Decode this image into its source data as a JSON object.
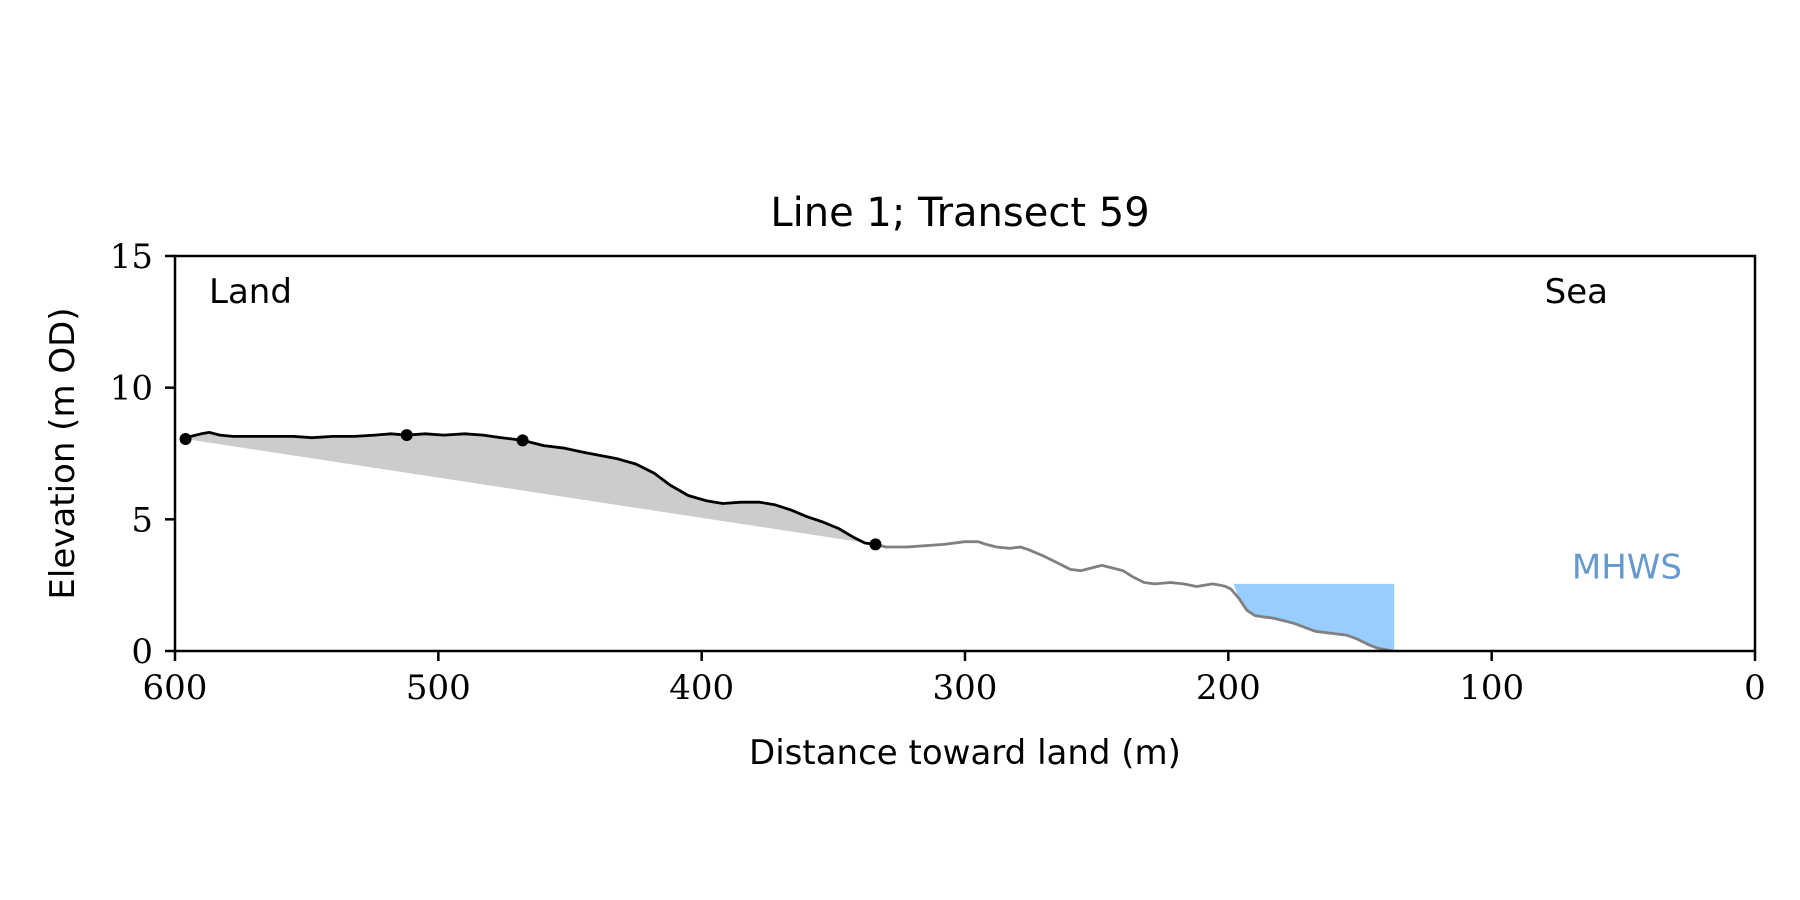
{
  "chart_data": {
    "type": "line",
    "title": "Line 1; Transect 59",
    "xlabel": "Distance toward land (m)",
    "ylabel": "Elevation (m OD)",
    "xlim": [
      600,
      0
    ],
    "ylim": [
      0,
      15
    ],
    "x_ticks": [
      600,
      500,
      400,
      300,
      200,
      100,
      0
    ],
    "y_ticks": [
      0,
      5,
      10,
      15
    ],
    "grid": false,
    "annotations": {
      "left": "Land",
      "right": "Sea",
      "mhws": "MHWS"
    },
    "colors": {
      "profile_highlight": "#000000",
      "profile_rest": "#808080",
      "fill_area": "#cccccc",
      "mhws_fill": "#99ccff",
      "mhws_text": "#6699cc"
    },
    "profile": {
      "x": [
        596,
        594,
        590,
        587,
        583,
        578,
        570,
        562,
        555,
        548,
        540,
        532,
        524,
        518,
        512,
        505,
        498,
        490,
        483,
        476,
        468,
        460,
        452,
        445,
        440,
        432,
        425,
        418,
        412,
        405,
        398,
        392,
        385,
        378,
        372,
        366,
        360,
        354,
        348,
        342,
        338,
        334,
        330,
        322,
        315,
        308,
        300,
        295,
        292,
        288,
        283,
        279,
        276,
        270,
        265,
        260,
        256,
        252,
        248,
        244,
        240,
        236,
        232,
        228,
        222,
        217,
        212,
        206,
        203,
        201,
        199,
        196,
        193,
        190,
        187,
        183,
        179,
        175,
        171,
        167,
        163,
        159,
        155,
        151,
        147,
        143,
        140,
        138
      ],
      "y": [
        8.05,
        8.15,
        8.25,
        8.3,
        8.2,
        8.15,
        8.15,
        8.15,
        8.15,
        8.1,
        8.15,
        8.15,
        8.2,
        8.25,
        8.2,
        8.25,
        8.2,
        8.25,
        8.2,
        8.1,
        8.0,
        7.8,
        7.7,
        7.55,
        7.45,
        7.3,
        7.1,
        6.75,
        6.3,
        5.9,
        5.7,
        5.6,
        5.65,
        5.65,
        5.55,
        5.35,
        5.1,
        4.9,
        4.65,
        4.3,
        4.1,
        4.05,
        3.95,
        3.95,
        4.0,
        4.05,
        4.15,
        4.15,
        4.05,
        3.95,
        3.9,
        3.95,
        3.85,
        3.6,
        3.35,
        3.1,
        3.05,
        3.15,
        3.25,
        3.15,
        3.05,
        2.8,
        2.6,
        2.55,
        2.6,
        2.55,
        2.45,
        2.55,
        2.5,
        2.45,
        2.35,
        2.0,
        1.55,
        1.35,
        1.3,
        1.25,
        1.15,
        1.05,
        0.9,
        0.75,
        0.7,
        0.65,
        0.6,
        0.45,
        0.25,
        0.1,
        0.05,
        0.0
      ],
      "highlight_x_range": [
        334,
        596
      ]
    },
    "markers": [
      {
        "x": 596,
        "y": 8.05
      },
      {
        "x": 512,
        "y": 8.2
      },
      {
        "x": 468,
        "y": 8.0
      },
      {
        "x": 334,
        "y": 4.05
      }
    ],
    "fill_between": {
      "from": [
        596,
        8.05
      ],
      "to": [
        334,
        4.05
      ]
    },
    "mhws": {
      "level": 2.55,
      "x_range": [
        137,
        198
      ]
    }
  }
}
